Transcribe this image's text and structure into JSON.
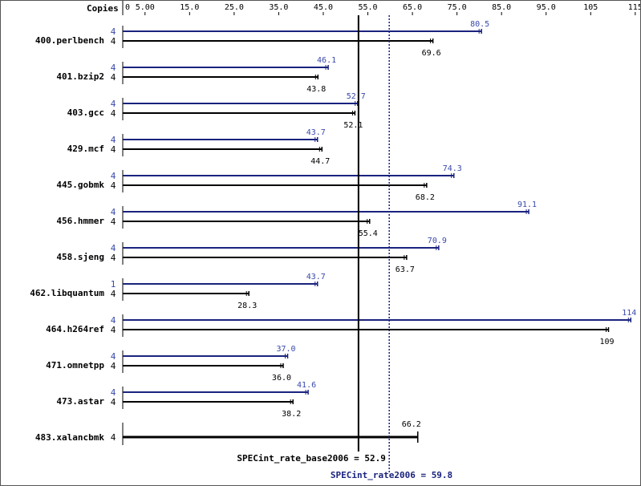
{
  "chart_data": {
    "type": "bar",
    "orientation": "horizontal",
    "copies_header": "Copies",
    "x_ticks": [
      "0",
      "5.00",
      "15.0",
      "25.0",
      "35.0",
      "45.0",
      "55.0",
      "65.0",
      "75.0",
      "85.0",
      "95.0",
      "105",
      "115"
    ],
    "x_tick_values": [
      0,
      5,
      15,
      25,
      35,
      45,
      55,
      65,
      75,
      85,
      95,
      105,
      115
    ],
    "xlim": [
      0,
      115
    ],
    "colors": {
      "peak": "#1a237e",
      "base": "#000000",
      "peak_text": "#3949ab"
    },
    "benchmarks": [
      {
        "name": "400.perlbench",
        "peak_copies": "4",
        "base_copies": "4",
        "peak": 80.5,
        "base": 69.6,
        "peak_label": "80.5",
        "base_label": "69.6"
      },
      {
        "name": "401.bzip2",
        "peak_copies": "4",
        "base_copies": "4",
        "peak": 46.1,
        "base": 43.8,
        "peak_label": "46.1",
        "base_label": "43.8"
      },
      {
        "name": "403.gcc",
        "peak_copies": "4",
        "base_copies": "4",
        "peak": 52.7,
        "base": 52.1,
        "peak_label": "52.7",
        "base_label": "52.1"
      },
      {
        "name": "429.mcf",
        "peak_copies": "4",
        "base_copies": "4",
        "peak": 43.7,
        "base": 44.7,
        "peak_label": "43.7",
        "base_label": "44.7"
      },
      {
        "name": "445.gobmk",
        "peak_copies": "4",
        "base_copies": "4",
        "peak": 74.3,
        "base": 68.2,
        "peak_label": "74.3",
        "base_label": "68.2"
      },
      {
        "name": "456.hmmer",
        "peak_copies": "4",
        "base_copies": "4",
        "peak": 91.1,
        "base": 55.4,
        "peak_label": "91.1",
        "base_label": "55.4"
      },
      {
        "name": "458.sjeng",
        "peak_copies": "4",
        "base_copies": "4",
        "peak": 70.9,
        "base": 63.7,
        "peak_label": "70.9",
        "base_label": "63.7"
      },
      {
        "name": "462.libquantum",
        "peak_copies": "1",
        "base_copies": "4",
        "peak": 43.7,
        "base": 28.3,
        "peak_label": "43.7",
        "base_label": "28.3"
      },
      {
        "name": "464.h264ref",
        "peak_copies": "4",
        "base_copies": "4",
        "peak": 114,
        "base": 109,
        "peak_label": "114",
        "base_label": "109"
      },
      {
        "name": "471.omnetpp",
        "peak_copies": "4",
        "base_copies": "4",
        "peak": 37.0,
        "base": 36.0,
        "peak_label": "37.0",
        "base_label": "36.0"
      },
      {
        "name": "473.astar",
        "peak_copies": "4",
        "base_copies": "4",
        "peak": 41.6,
        "base": 38.2,
        "peak_label": "41.6",
        "base_label": "38.2"
      },
      {
        "name": "483.xalancbmk",
        "peak_copies": null,
        "base_copies": "4",
        "peak": null,
        "base": 66.2,
        "peak_label": null,
        "base_label": "66.2"
      }
    ],
    "base_summary": {
      "label": "SPECint_rate_base2006 = 52.9",
      "value": 52.9
    },
    "peak_summary": {
      "label": "SPECint_rate2006 = 59.8",
      "value": 59.8
    }
  }
}
